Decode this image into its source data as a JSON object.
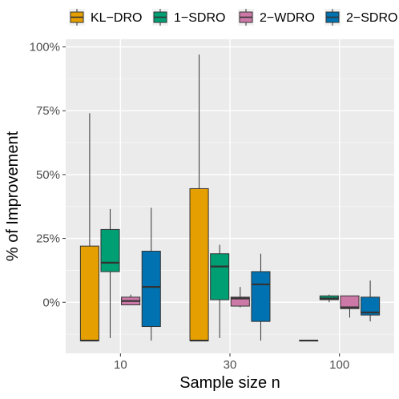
{
  "chart_data": {
    "type": "boxplot",
    "xlabel": "Sample size n",
    "ylabel": "% of Improvement",
    "categories": [
      "10",
      "30",
      "100"
    ],
    "y_ticks": [
      0,
      25,
      50,
      75,
      100
    ],
    "y_tick_labels": [
      "0%",
      "25%",
      "50%",
      "75%",
      "100%"
    ],
    "ylim": [
      -20,
      103
    ],
    "grid": true,
    "legend_position": "top",
    "series": [
      {
        "name": "KL−DRO",
        "color": "#E69F00",
        "boxes": [
          {
            "category": "10",
            "min": -15,
            "q1": -15,
            "median": -15,
            "q3": 22,
            "max": 74
          },
          {
            "category": "30",
            "min": -15,
            "q1": -15,
            "median": -15,
            "q3": 44.5,
            "max": 97
          },
          {
            "category": "100",
            "min": -15,
            "q1": -15,
            "median": -15,
            "q3": -15,
            "max": -15
          }
        ]
      },
      {
        "name": "1−SDRO",
        "color": "#009E73",
        "boxes": [
          {
            "category": "10",
            "min": -14,
            "q1": 12,
            "median": 15.5,
            "q3": 28.5,
            "max": 36.5
          },
          {
            "category": "30",
            "min": -14,
            "q1": 1,
            "median": 14,
            "q3": 19,
            "max": 22.5
          },
          {
            "category": "100",
            "min": 0,
            "q1": 1,
            "median": 1.5,
            "q3": 2.5,
            "max": 3
          }
        ]
      },
      {
        "name": "2−WDRO",
        "color": "#CC79A7",
        "boxes": [
          {
            "category": "10",
            "min": -1,
            "q1": -1,
            "median": 0.5,
            "q3": 2,
            "max": 3
          },
          {
            "category": "30",
            "min": -2,
            "q1": -1.5,
            "median": 1.5,
            "q3": 2,
            "max": 6
          },
          {
            "category": "100",
            "min": -6,
            "q1": -2.5,
            "median": -2,
            "q3": 2.5,
            "max": 2.5
          }
        ]
      },
      {
        "name": "2−SDRO",
        "color": "#0072B2",
        "boxes": [
          {
            "category": "10",
            "min": -15,
            "q1": -9.5,
            "median": 6,
            "q3": 20,
            "max": 37
          },
          {
            "category": "30",
            "min": -15,
            "q1": -7.5,
            "median": 7,
            "q3": 12,
            "max": 19
          },
          {
            "category": "100",
            "min": -7.5,
            "q1": -5,
            "median": -4,
            "q3": 2,
            "max": 8.5
          }
        ]
      }
    ]
  }
}
